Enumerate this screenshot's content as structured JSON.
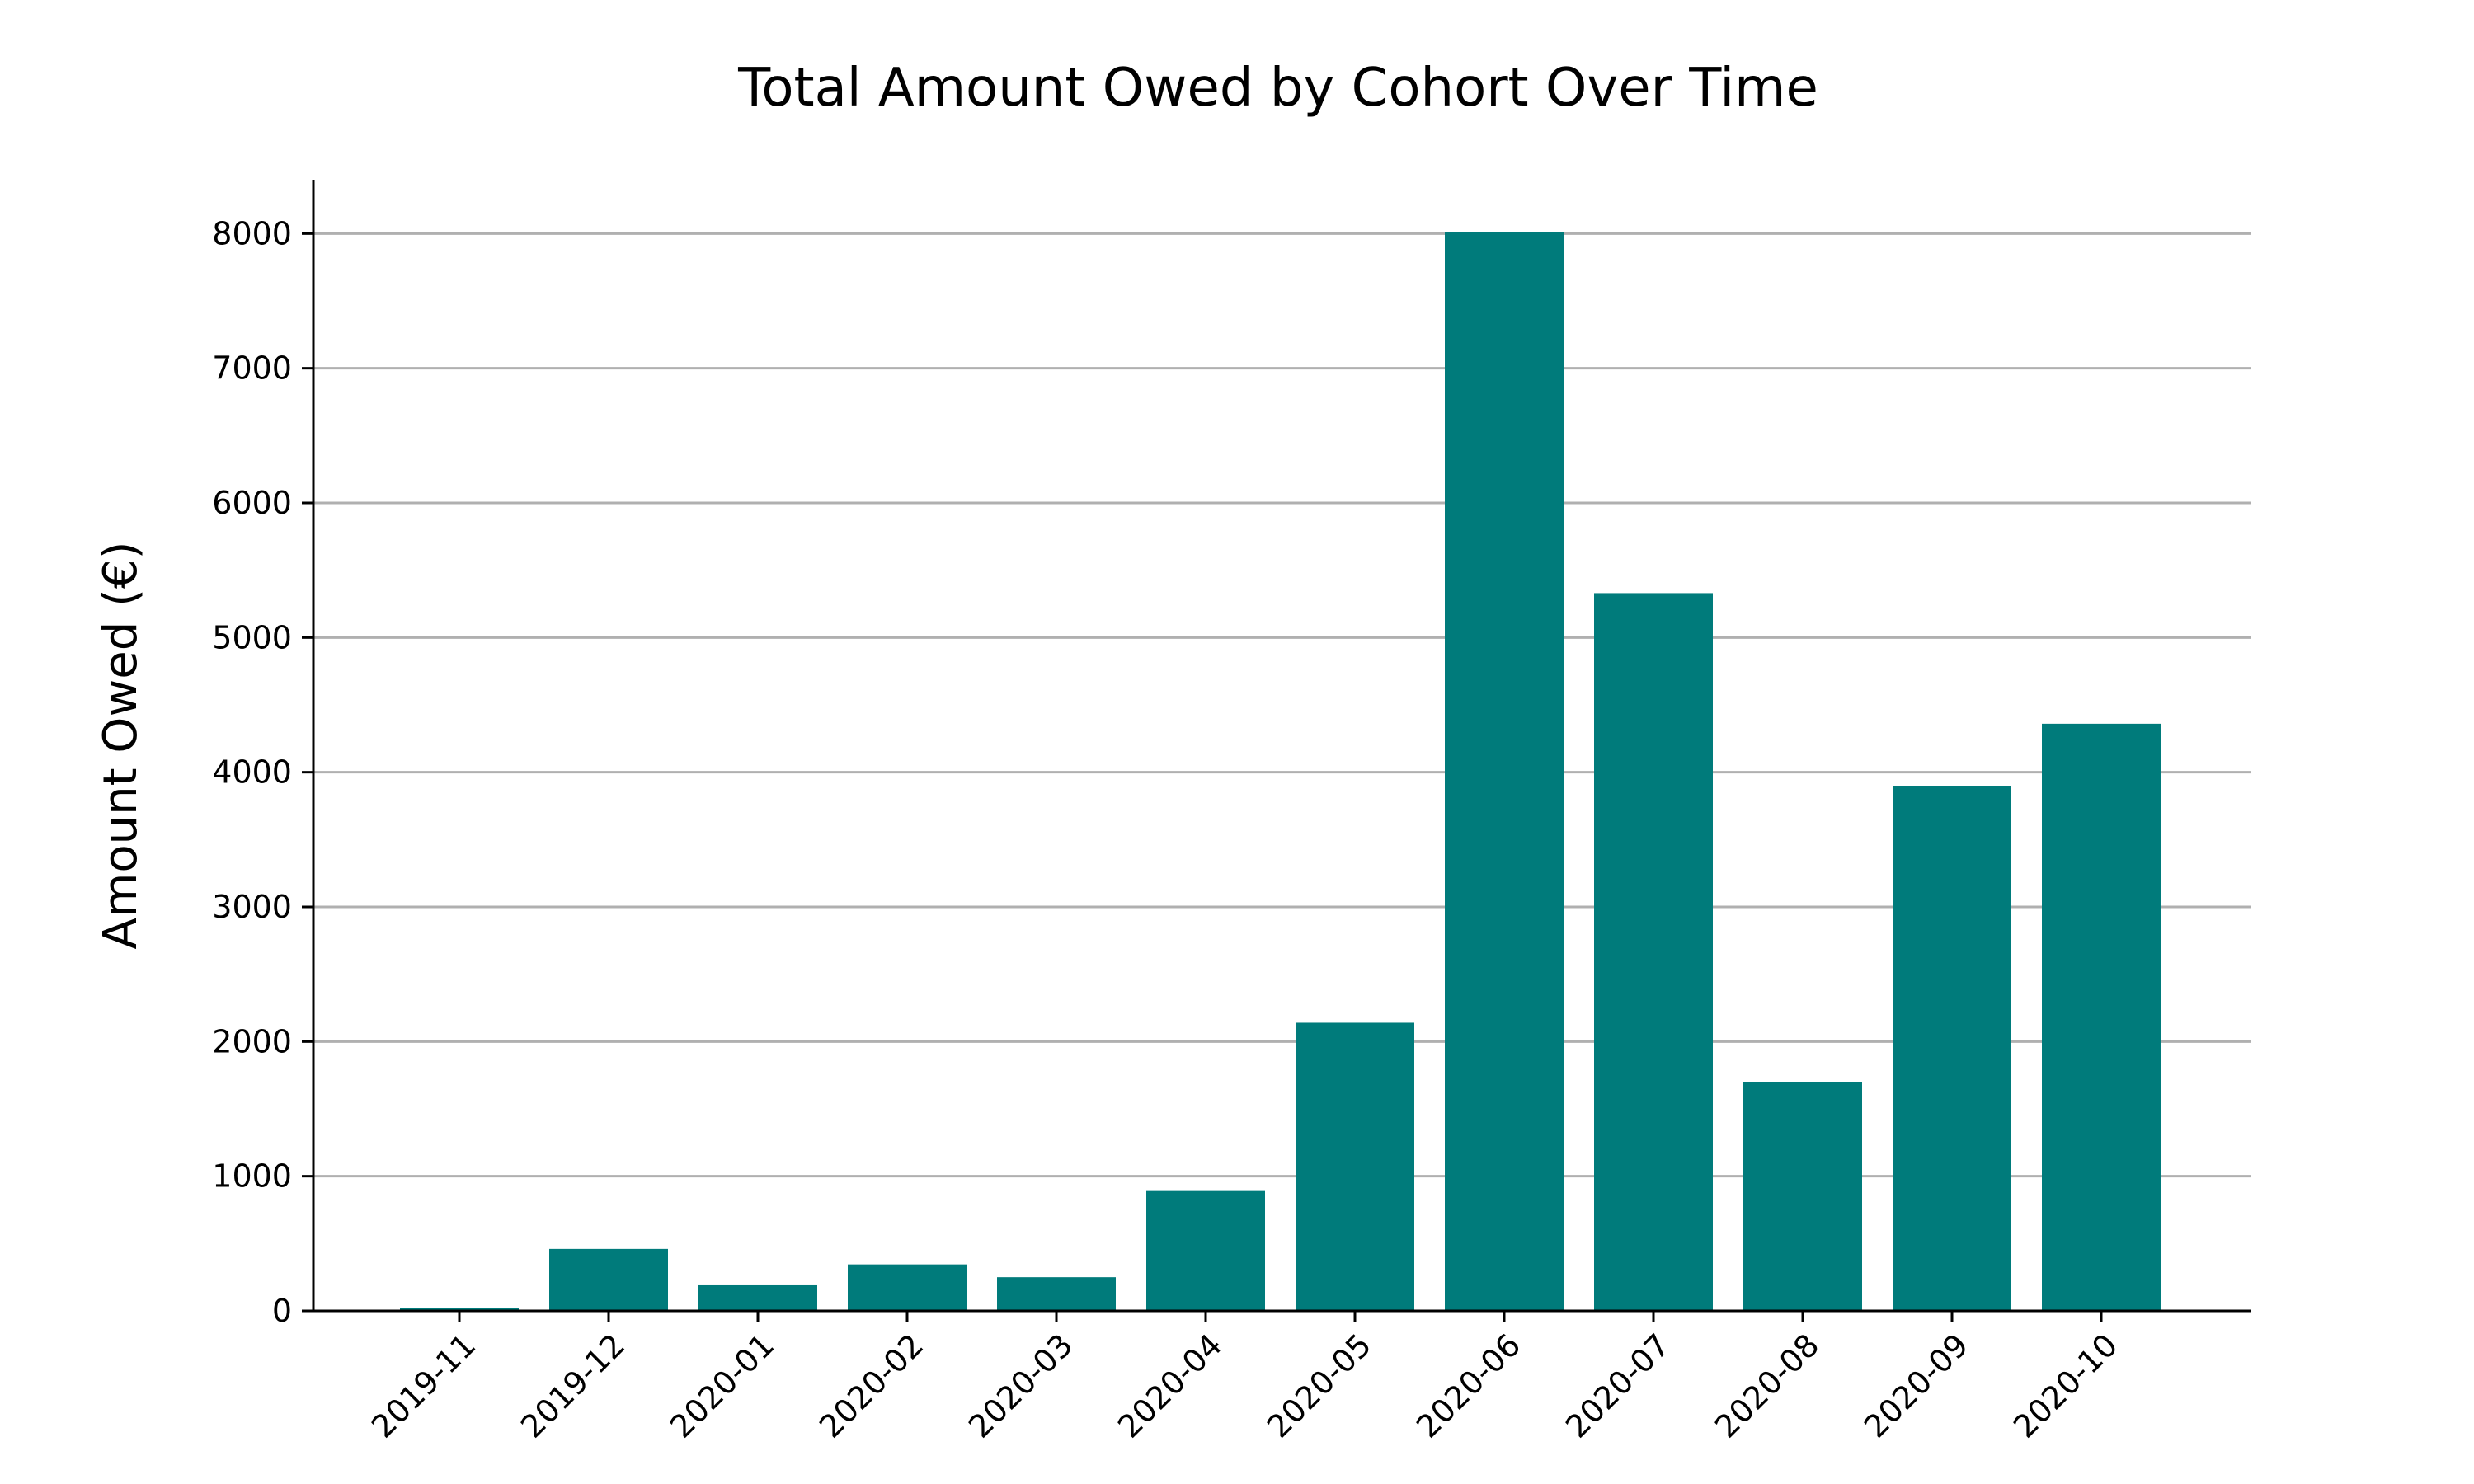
{
  "chart_data": {
    "type": "bar",
    "title": "Total Amount Owed by Cohort Over Time",
    "xlabel": "",
    "ylabel": "Amount Owed (€)",
    "categories": [
      "2019-11",
      "2019-12",
      "2020-01",
      "2020-02",
      "2020-03",
      "2020-04",
      "2020-05",
      "2020-06",
      "2020-07",
      "2020-08",
      "2020-09",
      "2020-10"
    ],
    "values": [
      20,
      460,
      190,
      345,
      250,
      890,
      2140,
      8010,
      5330,
      1700,
      3900,
      4360
    ],
    "ylim": [
      0,
      8400
    ],
    "yticks": [
      0,
      1000,
      2000,
      3000,
      4000,
      5000,
      6000,
      7000,
      8000
    ],
    "grid": "y",
    "legend": "none",
    "colors": {
      "bar": "#007b7b",
      "grid": "#b0b0b0",
      "axis": "#000000"
    }
  }
}
